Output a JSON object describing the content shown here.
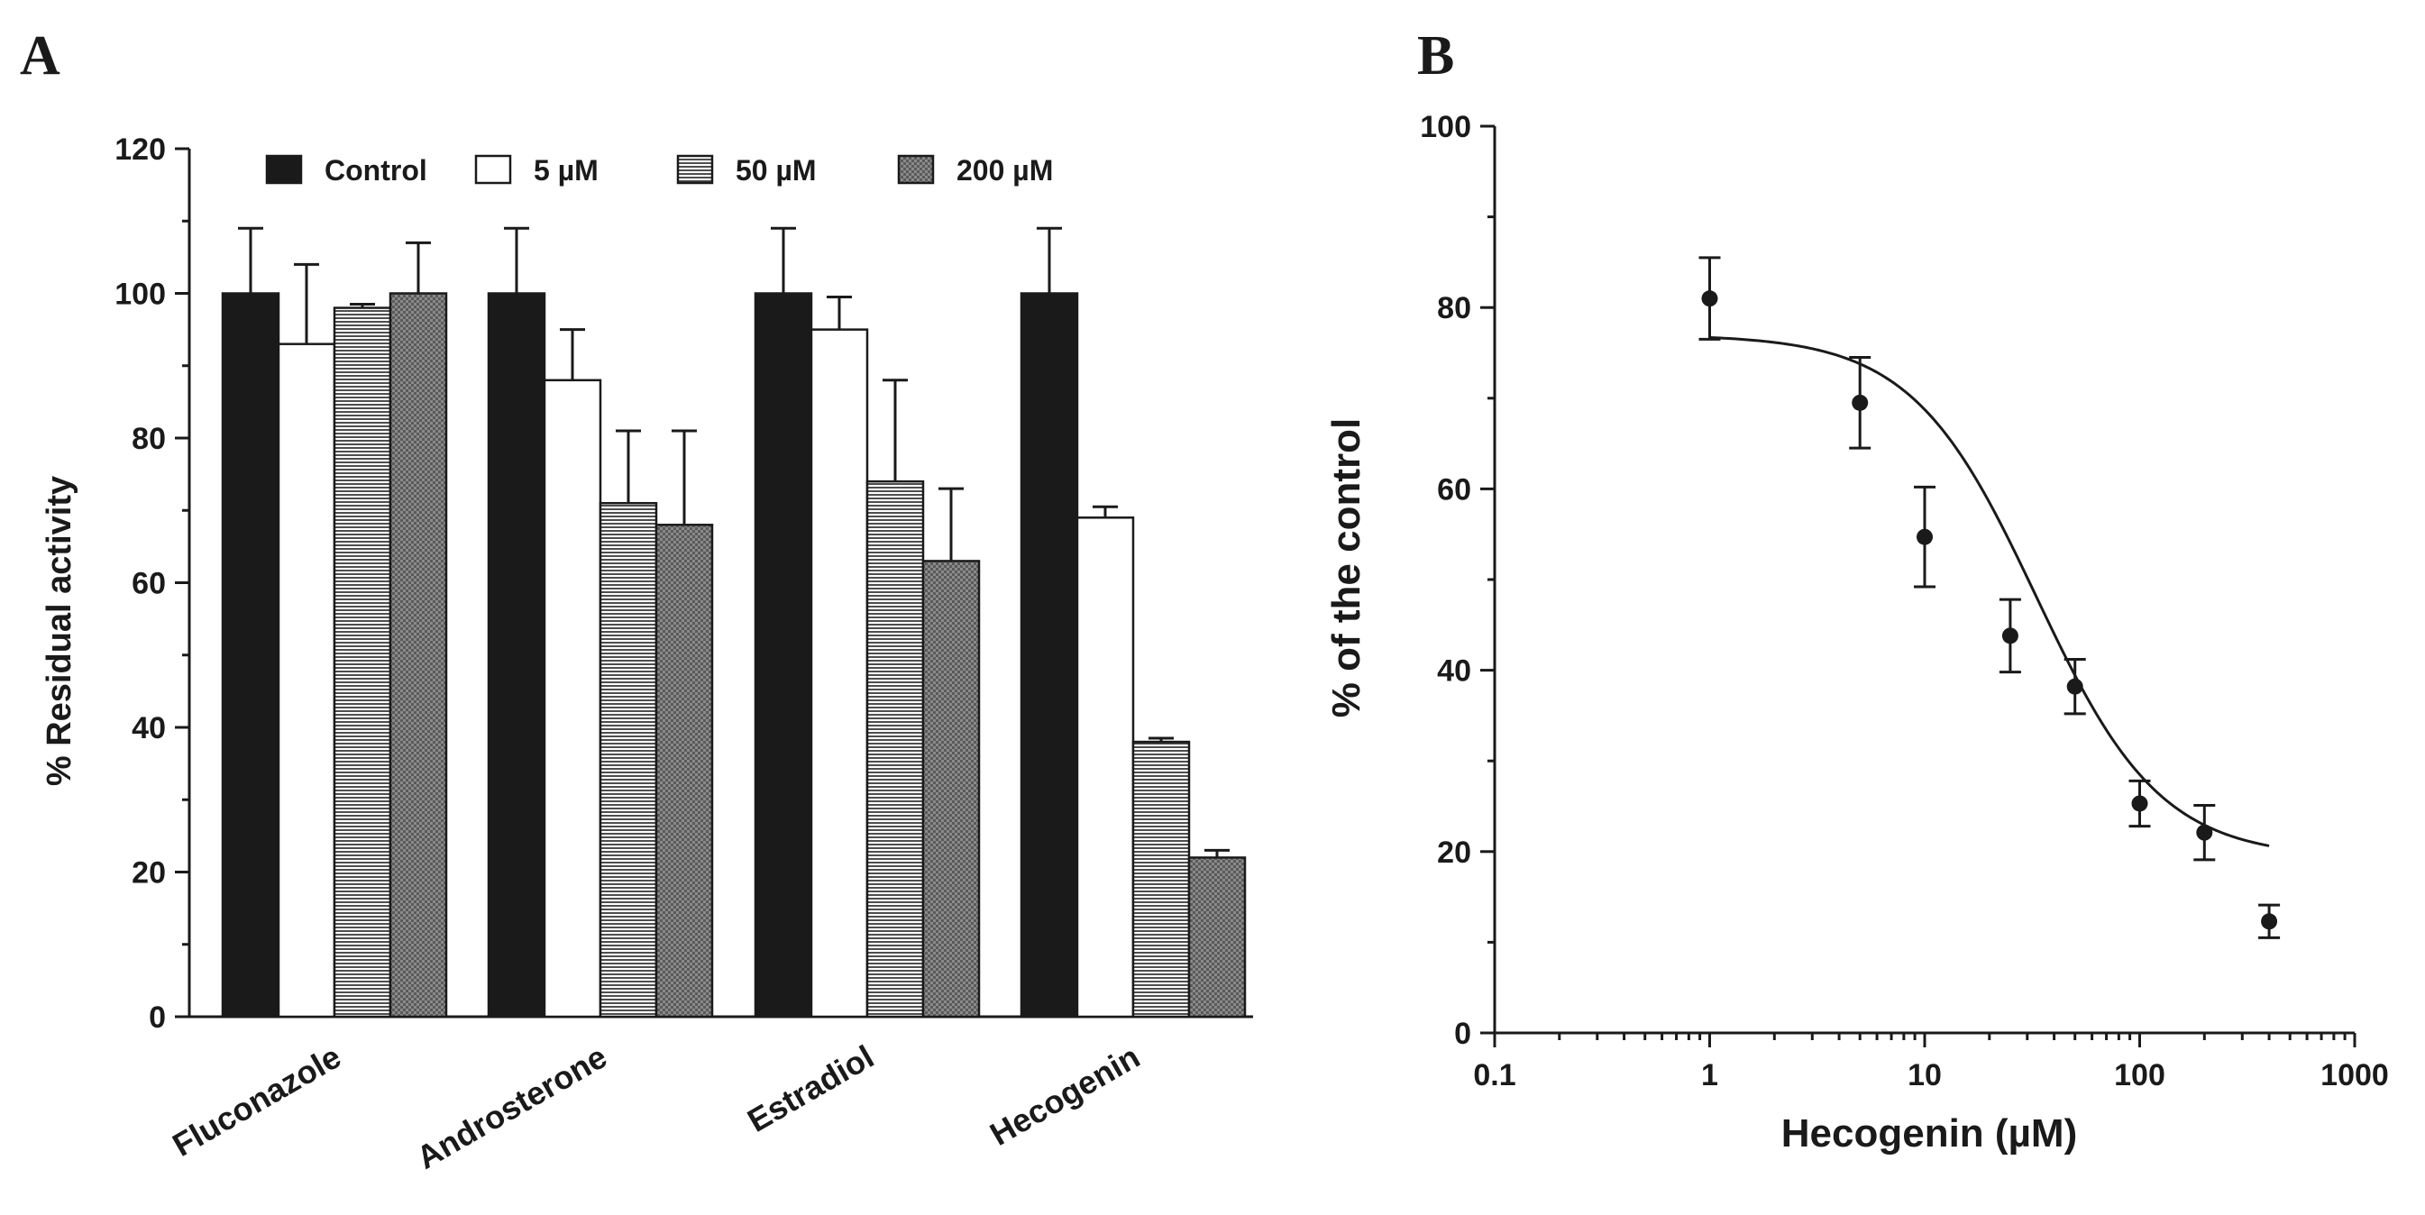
{
  "chart_data": [
    {
      "panel": "A",
      "type": "bar",
      "title": "",
      "xlabel": "",
      "ylabel": "% Residual activity",
      "ylim": [
        0,
        120
      ],
      "yticks": [
        0,
        20,
        40,
        60,
        80,
        100,
        120
      ],
      "categories": [
        "Fluconazole",
        "Androsterone",
        "Estradiol",
        "Hecogenin"
      ],
      "legend_position": "top",
      "series": [
        {
          "name": "Control",
          "pattern": "solid",
          "values": [
            100,
            100,
            100,
            100
          ],
          "errors": [
            9,
            9,
            9,
            9
          ]
        },
        {
          "name": "5 µM",
          "pattern": "open",
          "values": [
            93,
            88,
            95,
            69
          ],
          "errors": [
            11,
            7,
            4.5,
            1.5
          ]
        },
        {
          "name": "50 µM",
          "pattern": "horizontal-lines",
          "values": [
            98,
            71,
            74,
            38
          ],
          "errors": [
            0.5,
            10,
            14,
            0.5
          ]
        },
        {
          "name": "200 µM",
          "pattern": "crosshatch",
          "values": [
            100,
            68,
            63,
            22
          ],
          "errors": [
            7,
            13,
            10,
            1
          ]
        }
      ]
    },
    {
      "panel": "B",
      "type": "scatter",
      "title": "",
      "xlabel": "Hecogenin (µM)",
      "ylabel": "% of the control",
      "xscale": "log",
      "xlim": [
        0.1,
        1000
      ],
      "ylim": [
        0,
        100
      ],
      "xticks": [
        0.1,
        1,
        10,
        100,
        1000
      ],
      "xtick_labels": [
        "0.1",
        "1",
        "10",
        "100",
        "1000"
      ],
      "yticks": [
        0,
        20,
        40,
        60,
        80,
        100
      ],
      "x": [
        1,
        5,
        10,
        25,
        50,
        100,
        200,
        400
      ],
      "y": [
        81,
        69.5,
        54.7,
        43.8,
        38.2,
        25.3,
        22.1,
        12.3
      ],
      "errors": [
        4.5,
        5,
        5.5,
        4,
        3,
        2.5,
        3,
        1.8
      ],
      "fit": {
        "model": "sigmoid dose-response",
        "top": 77,
        "bottom": 19.3,
        "ic50": 33,
        "hill": 1.5,
        "x_range": [
          1,
          400
        ]
      }
    }
  ]
}
